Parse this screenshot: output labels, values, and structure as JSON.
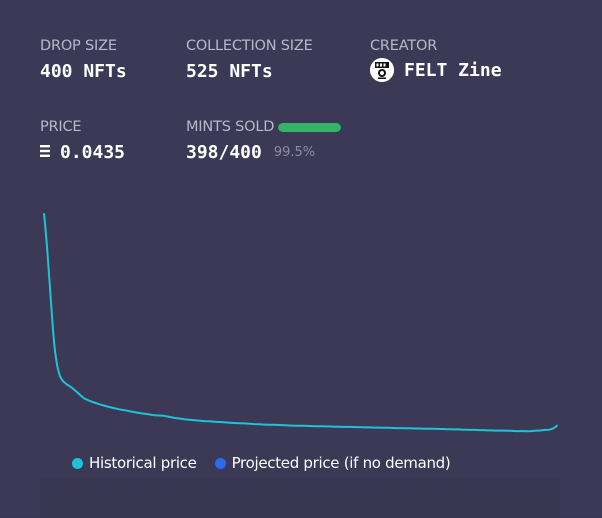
{
  "colors": {
    "historical": "#1ec3d6",
    "projected": "#2a6cf0",
    "mint_bar": "#36b36a"
  },
  "stats": {
    "drop_size": {
      "label": "DROP SIZE",
      "value": "400 NFTs"
    },
    "collection_size": {
      "label": "COLLECTION SIZE",
      "value": "525 NFTs"
    },
    "creator": {
      "label": "CREATOR",
      "value": "FELT Zine",
      "avatar_icon": "felt-zine-logo-icon"
    },
    "price": {
      "label": "PRICE",
      "value": "0.0435",
      "currency_icon": "ethereum-icon"
    },
    "mints_sold": {
      "label": "MINTS SOLD",
      "value": "398/400",
      "percent": "99.5%",
      "progress": 0.995
    }
  },
  "legend": {
    "historical": "Historical price",
    "projected": "Projected price (if no demand)"
  },
  "chart_data": {
    "type": "line",
    "title": "",
    "xlabel": "",
    "ylabel": "",
    "grid": false,
    "legend_position": "bottom",
    "series": [
      {
        "name": "Historical price",
        "x": [
          0,
          1,
          2,
          3,
          4,
          5,
          6,
          7,
          8,
          9,
          10,
          11,
          12,
          13,
          14,
          16,
          18,
          20,
          22,
          24,
          26,
          28,
          30,
          33,
          36,
          40,
          45,
          50,
          55,
          60,
          65,
          70,
          75,
          80,
          85,
          90,
          95,
          100,
          105,
          110,
          115,
          120,
          125,
          130,
          135,
          140,
          145,
          150,
          155,
          160,
          165,
          170,
          175,
          180,
          185,
          190,
          195,
          200,
          205,
          210,
          215,
          220,
          225,
          230,
          235,
          240,
          245,
          250,
          255,
          260,
          265,
          270,
          275,
          280,
          285,
          290,
          295,
          300,
          305,
          310,
          315,
          320,
          325,
          330,
          335,
          340,
          345,
          350,
          355,
          360,
          365,
          370,
          375,
          380,
          385,
          390,
          395,
          398,
          402,
          406,
          410,
          414,
          418,
          422,
          426,
          430,
          434,
          438,
          442,
          446,
          450,
          454,
          458,
          462,
          466,
          470,
          474,
          478,
          482,
          486,
          490,
          492,
          494,
          496,
          498,
          500,
          502,
          504,
          506,
          508,
          510,
          512
        ],
        "y": [
          1.0,
          0.96,
          0.91,
          0.86,
          0.8,
          0.74,
          0.68,
          0.62,
          0.56,
          0.5,
          0.45,
          0.41,
          0.38,
          0.35,
          0.33,
          0.3,
          0.285,
          0.275,
          0.268,
          0.262,
          0.256,
          0.25,
          0.243,
          0.232,
          0.22,
          0.205,
          0.195,
          0.187,
          0.18,
          0.174,
          0.168,
          0.163,
          0.158,
          0.154,
          0.15,
          0.146,
          0.142,
          0.139,
          0.136,
          0.132,
          0.131,
          0.13,
          0.125,
          0.121,
          0.118,
          0.115,
          0.113,
          0.111,
          0.109,
          0.107,
          0.106,
          0.104,
          0.103,
          0.102,
          0.1,
          0.099,
          0.098,
          0.097,
          0.096,
          0.094,
          0.093,
          0.092,
          0.091,
          0.091,
          0.09,
          0.089,
          0.088,
          0.087,
          0.087,
          0.087,
          0.086,
          0.085,
          0.085,
          0.084,
          0.084,
          0.083,
          0.083,
          0.082,
          0.082,
          0.081,
          0.081,
          0.08,
          0.08,
          0.079,
          0.079,
          0.078,
          0.078,
          0.077,
          0.077,
          0.076,
          0.076,
          0.075,
          0.075,
          0.074,
          0.074,
          0.074,
          0.073,
          0.073,
          0.072,
          0.072,
          0.071,
          0.071,
          0.07,
          0.07,
          0.069,
          0.069,
          0.068,
          0.068,
          0.067,
          0.067,
          0.066,
          0.066,
          0.066,
          0.065,
          0.065,
          0.064,
          0.064,
          0.064,
          0.063,
          0.064,
          0.065,
          0.066,
          0.066,
          0.067,
          0.068,
          0.069,
          0.069,
          0.07,
          0.072,
          0.075,
          0.08,
          0.087
        ]
      }
    ]
  }
}
